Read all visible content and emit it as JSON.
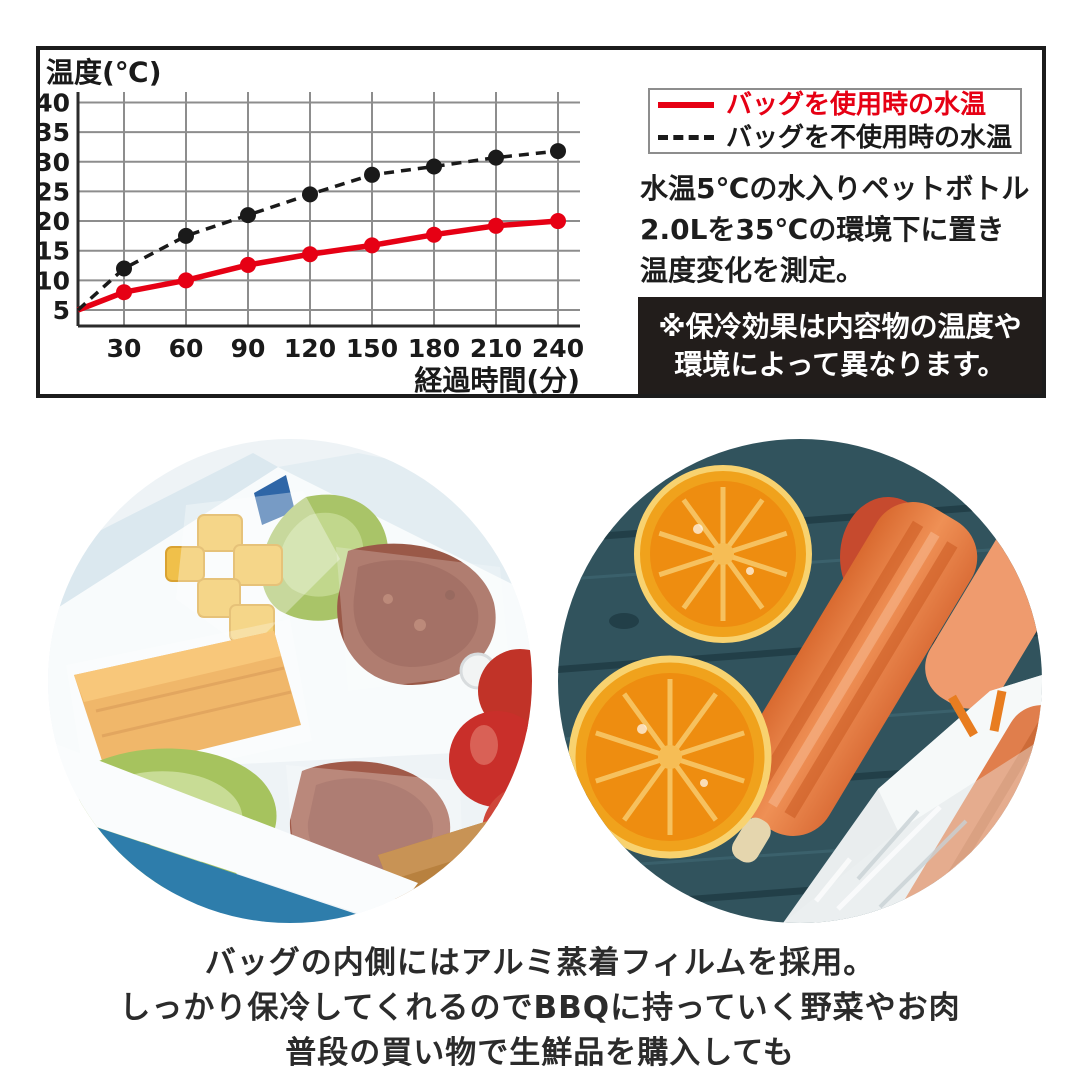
{
  "panel": {
    "legend": {
      "items": [
        {
          "label": "バッグを使用時の水温",
          "color": "#e60014",
          "label_color": "#e60014",
          "style": "solid"
        },
        {
          "label": "バッグを不使用時の水温",
          "color": "#1a1a1a",
          "label_color": "#1a1a1a",
          "style": "dashed"
        }
      ]
    },
    "description": {
      "line1": "水温5℃の水入りペットボトル",
      "line2": "2.0Lを35℃の環境下に置き",
      "line3": "温度変化を測定。"
    },
    "notice": {
      "line1": "※保冷効果は内容物の温度や",
      "line2": "環境によって異なります。",
      "bg": "#221d1b",
      "text_color": "#ffffff"
    }
  },
  "chart_data": {
    "type": "line",
    "title": "",
    "ylabel": "温度(℃)",
    "xlabel": "経過時間(分)",
    "x": [
      0,
      30,
      60,
      90,
      120,
      150,
      180,
      210,
      240
    ],
    "x_ticks": [
      30,
      60,
      90,
      120,
      150,
      180,
      210,
      240
    ],
    "y_ticks": [
      5,
      10,
      15,
      20,
      25,
      30,
      35,
      40
    ],
    "xlim": [
      0,
      252
    ],
    "ylim": [
      3,
      41.5
    ],
    "grid": true,
    "grid_color": "#8d8d8d",
    "axis_color": "#2b2b2b",
    "legend_position": "outside-top-right",
    "series": [
      {
        "name": "バッグを使用時の水温",
        "color": "#e60014",
        "line": "solid",
        "marker": "circle",
        "values": [
          5,
          8,
          10,
          12.6,
          14.4,
          15.9,
          17.7,
          19.2,
          20
        ]
      },
      {
        "name": "バッグを不使用時の水温",
        "color": "#1a1a1a",
        "line": "dashed",
        "marker": "circle",
        "values": [
          5,
          12,
          17.5,
          21,
          24.5,
          27.8,
          29.2,
          30.7,
          31.8
        ]
      }
    ]
  },
  "photos": {
    "left_label": "cooler-box-with-packed-food",
    "right_label": "orange-halves-and-ice-pops"
  },
  "caption": {
    "line1": "バッグの内側にはアルミ蒸着フィルムを採用。",
    "line2": "しっかり保冷してくれるのでBBQに持っていく野菜やお肉",
    "line3": "普段の買い物で生鮮品を購入しても"
  }
}
